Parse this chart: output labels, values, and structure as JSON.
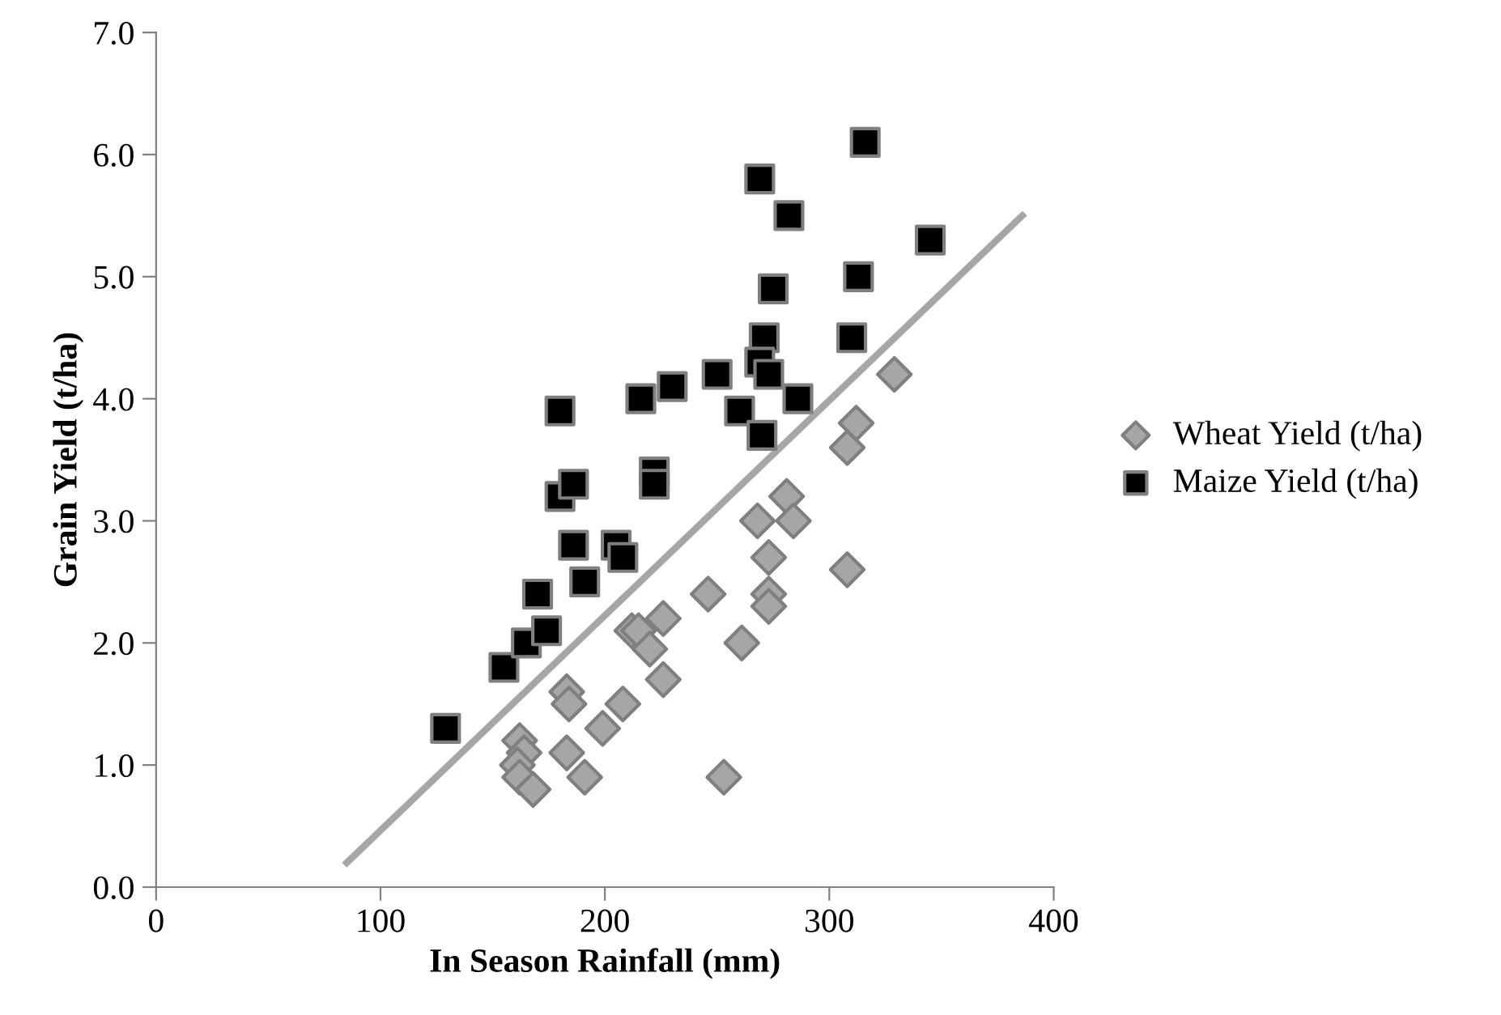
{
  "chart_data": {
    "type": "scatter",
    "xlabel": "In Season Rainfall (mm)",
    "ylabel": "Grain Yield (t/ha)",
    "xlim": [
      0,
      400
    ],
    "xticks": [
      0,
      100,
      200,
      300,
      400
    ],
    "ylim": [
      0,
      7
    ],
    "yticks": [
      {
        "value": 0,
        "label": "0.0"
      },
      {
        "value": 1,
        "label": "1.0"
      },
      {
        "value": 2,
        "label": "2.0"
      },
      {
        "value": 3,
        "label": "3.0"
      },
      {
        "value": 4,
        "label": "4.0"
      },
      {
        "value": 5,
        "label": "5.0"
      },
      {
        "value": 6,
        "label": "6.0"
      },
      {
        "value": 7,
        "label": "7.0"
      }
    ],
    "grid": false,
    "legend": "right",
    "series": [
      {
        "name": "Wheat Yield (t/ha)",
        "marker": "diamond",
        "color": "#a6a6a6",
        "x": [
          162,
          164,
          161,
          162,
          168,
          183,
          184,
          183,
          191,
          199,
          208,
          212,
          215,
          226,
          220,
          226,
          246,
          261,
          253,
          268,
          273,
          273,
          273,
          281,
          284,
          308,
          308,
          312,
          329
        ],
        "values": [
          1.2,
          1.1,
          1.0,
          0.9,
          0.8,
          1.6,
          1.5,
          1.1,
          0.9,
          1.3,
          1.5,
          2.1,
          2.1,
          2.2,
          1.95,
          1.7,
          2.4,
          2.0,
          0.9,
          3.0,
          2.7,
          2.4,
          2.3,
          3.2,
          3.0,
          2.6,
          3.6,
          3.8,
          4.2
        ]
      },
      {
        "name": "Maize Yield (t/ha)",
        "marker": "square",
        "color": "#000000",
        "x": [
          129,
          155,
          165,
          174,
          170,
          180,
          186,
          180,
          186,
          191,
          205,
          208,
          216,
          230,
          222,
          222,
          250,
          260,
          270,
          271,
          269,
          273,
          286,
          275,
          269,
          282,
          316,
          313,
          345,
          310
        ],
        "values": [
          1.3,
          1.8,
          2.0,
          2.1,
          2.4,
          3.2,
          3.3,
          3.9,
          2.8,
          2.5,
          2.8,
          2.7,
          4.0,
          4.1,
          3.4,
          3.3,
          4.2,
          3.9,
          3.7,
          4.5,
          4.3,
          4.2,
          4.0,
          4.9,
          5.8,
          5.5,
          6.1,
          5.0,
          5.3,
          4.5
        ]
      },
      {
        "type": "line",
        "marker": "none",
        "color": "#a6a6a6",
        "x": [
          85,
          386
        ],
        "values": [
          0.2,
          5.5
        ]
      }
    ]
  }
}
